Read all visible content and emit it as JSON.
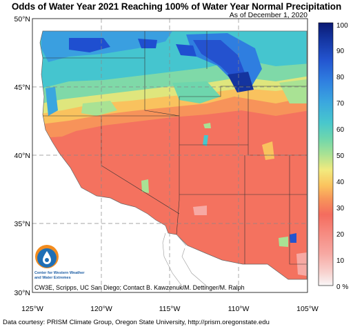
{
  "title": "Odds of Water Year 2021 Reaching 100% of Water Year Normal Precipitation",
  "subtitle": "As of December 1, 2020",
  "lat_labels": [
    "50°N",
    "45°N",
    "40°N",
    "35°N",
    "30°N"
  ],
  "lon_labels": [
    "125°W",
    "120°W",
    "115°W",
    "110°W",
    "105°W"
  ],
  "colorbar": {
    "labels": [
      "100",
      "90",
      "80",
      "70",
      "60",
      "50",
      "40",
      "30",
      "20",
      "10",
      "0 %"
    ],
    "colors": [
      "#f9f7f7",
      "#f8d2cf",
      "#f7a9a3",
      "#f68a80",
      "#f46c5e",
      "#f7955a",
      "#fbc35e",
      "#f2ea7e",
      "#a9e294",
      "#6ed6ad",
      "#48c7cd",
      "#3aa6df",
      "#2f7ee0",
      "#2354cf",
      "#14349f",
      "#0b1a73"
    ]
  },
  "logo": {
    "line1": "Center for Western Weather",
    "line2": "and Water Extremes"
  },
  "attribution": "CW3E, Scripps, UC San Diego; Contact B. Kawzenuk/M. Dettinger/M. Ralph",
  "data_source": "Data courtesy: PRISM Climate Group, Oregon State University, http://prism.oregonstate.edu"
}
